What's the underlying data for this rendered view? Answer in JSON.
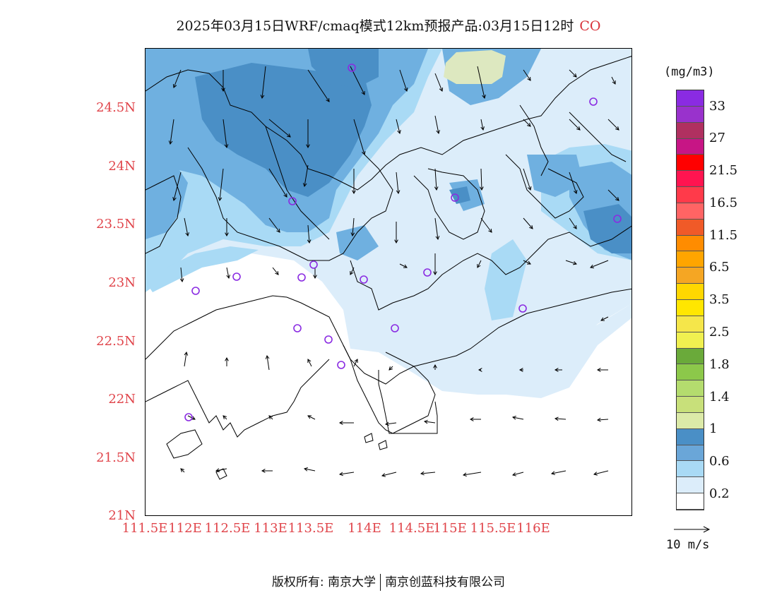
{
  "title": {
    "text": "2025年03月15日WRF/cmaq模式12km预报产品:03月15日12时",
    "species": "CO"
  },
  "map": {
    "lat_labels": [
      "24.5N",
      "24N",
      "23.5N",
      "23N",
      "22.5N",
      "22N",
      "21.5N",
      "21N"
    ],
    "lon_labels": [
      "111.5E",
      "112E",
      "112.5E",
      "113E",
      "113.5E",
      "114E",
      "114.5E",
      "115E",
      "115.5E",
      "116E"
    ],
    "colors": {
      "lvl0": "#ffffff",
      "lvl1": "#dcedfa",
      "lvl2": "#a9daf5",
      "lvl3": "#6fb0e0",
      "lvl4": "#4a8fc6",
      "lvl5": "#dde8c0"
    }
  },
  "colorbar": {
    "units": "(mg/m3)",
    "labels": [
      "33",
      "27",
      "21.5",
      "16.5",
      "11.5",
      "6.5",
      "3.5",
      "2.5",
      "1.8",
      "1.4",
      "1",
      "0.6",
      "0.2"
    ],
    "colors_top_to_bottom": [
      "#8a2be2",
      "#9932cc",
      "#b03060",
      "#c71585",
      "#ff0000",
      "#ff1450",
      "#ff3a4a",
      "#ff6464",
      "#f05a28",
      "#ff8c00",
      "#ffa500",
      "#f5a623",
      "#ffd700",
      "#ffe600",
      "#f5e64a",
      "#f0f050",
      "#6aaa3a",
      "#8cc84a",
      "#b4dc6e",
      "#c8e07a",
      "#dceaa8",
      "#4a8fc6",
      "#6aa6d8",
      "#a9daf5",
      "#dcedfa",
      "#ffffff"
    ]
  },
  "vector_ref": {
    "label": "10 m/s"
  },
  "footer": {
    "left": "版权所有: 南京大学",
    "right": "南京创蓝科技有限公司"
  }
}
